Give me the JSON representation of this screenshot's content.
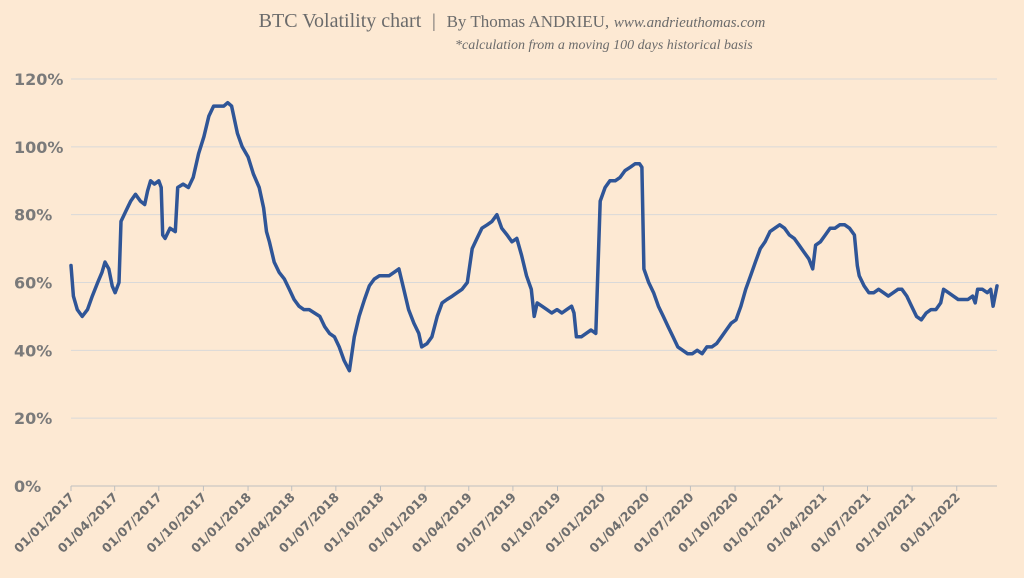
{
  "title": {
    "main": "BTC Volatility chart",
    "separator": "|",
    "author": "By Thomas ANDRIEU,",
    "site": "www.andrieuthomas.com"
  },
  "subtitle": "*calculation from a moving 100 days historical basis",
  "colors": {
    "background": "#fde9d3",
    "line": "#2f5597",
    "grid": "#d9d9d9"
  },
  "chart_data": {
    "type": "line",
    "title": "BTC Volatility chart",
    "xlabel": "",
    "ylabel": "",
    "ylim": [
      0,
      120
    ],
    "grid": true,
    "legend": "none",
    "y_tick_labels": [
      "0%",
      "20%",
      "40%",
      "60%",
      "80%",
      "100%",
      "120%"
    ],
    "x_tick_labels": [
      "01/01/2017",
      "01/04/2017",
      "01/07/2017",
      "01/10/2017",
      "01/01/2018",
      "01/04/2018",
      "01/07/2018",
      "01/10/2018",
      "01/01/2019",
      "01/04/2019",
      "01/07/2019",
      "01/10/2019",
      "01/01/2020",
      "01/04/2020",
      "01/07/2020",
      "01/10/2020",
      "01/01/2021",
      "01/04/2021",
      "01/07/2021",
      "01/10/2021",
      "01/01/2022"
    ],
    "x_range": [
      "2017-01-01",
      "2022-03-25"
    ],
    "series": [
      {
        "points": [
          [
            "2017-01-01",
            65
          ],
          [
            "2017-01-06",
            56
          ],
          [
            "2017-01-14",
            52
          ],
          [
            "2017-01-24",
            50
          ],
          [
            "2017-02-04",
            52
          ],
          [
            "2017-02-14",
            56
          ],
          [
            "2017-02-25",
            60
          ],
          [
            "2017-03-06",
            63
          ],
          [
            "2017-03-12",
            66
          ],
          [
            "2017-03-20",
            64
          ],
          [
            "2017-03-27",
            59
          ],
          [
            "2017-04-02",
            57
          ],
          [
            "2017-04-10",
            60
          ],
          [
            "2017-04-14",
            78
          ],
          [
            "2017-04-24",
            81
          ],
          [
            "2017-05-04",
            84
          ],
          [
            "2017-05-14",
            86
          ],
          [
            "2017-05-24",
            84
          ],
          [
            "2017-06-02",
            83
          ],
          [
            "2017-06-08",
            87
          ],
          [
            "2017-06-14",
            90
          ],
          [
            "2017-06-22",
            89
          ],
          [
            "2017-07-01",
            90
          ],
          [
            "2017-07-06",
            88
          ],
          [
            "2017-07-09",
            74
          ],
          [
            "2017-07-14",
            73
          ],
          [
            "2017-07-24",
            76
          ],
          [
            "2017-08-04",
            75
          ],
          [
            "2017-08-09",
            88
          ],
          [
            "2017-08-20",
            89
          ],
          [
            "2017-08-31",
            88
          ],
          [
            "2017-09-10",
            91
          ],
          [
            "2017-09-21",
            98
          ],
          [
            "2017-10-02",
            103
          ],
          [
            "2017-10-12",
            109
          ],
          [
            "2017-10-22",
            112
          ],
          [
            "2017-11-01",
            112
          ],
          [
            "2017-11-12",
            112
          ],
          [
            "2017-11-20",
            113
          ],
          [
            "2017-11-28",
            112
          ],
          [
            "2017-12-10",
            104
          ],
          [
            "2017-12-20",
            100
          ],
          [
            "2018-01-01",
            97
          ],
          [
            "2018-01-12",
            92
          ],
          [
            "2018-01-24",
            88
          ],
          [
            "2018-02-02",
            82
          ],
          [
            "2018-02-08",
            75
          ],
          [
            "2018-02-14",
            72
          ],
          [
            "2018-02-24",
            66
          ],
          [
            "2018-03-06",
            63
          ],
          [
            "2018-03-17",
            61
          ],
          [
            "2018-03-27",
            58
          ],
          [
            "2018-04-06",
            55
          ],
          [
            "2018-04-16",
            53
          ],
          [
            "2018-04-26",
            52
          ],
          [
            "2018-05-07",
            52
          ],
          [
            "2018-05-18",
            51
          ],
          [
            "2018-05-29",
            50
          ],
          [
            "2018-06-08",
            47
          ],
          [
            "2018-06-18",
            45
          ],
          [
            "2018-06-28",
            44
          ],
          [
            "2018-07-08",
            41
          ],
          [
            "2018-07-18",
            37
          ],
          [
            "2018-07-29",
            34
          ],
          [
            "2018-08-08",
            44
          ],
          [
            "2018-08-18",
            50
          ],
          [
            "2018-08-29",
            55
          ],
          [
            "2018-09-08",
            59
          ],
          [
            "2018-09-18",
            61
          ],
          [
            "2018-09-29",
            62
          ],
          [
            "2018-10-09",
            62
          ],
          [
            "2018-10-19",
            62
          ],
          [
            "2018-10-29",
            63
          ],
          [
            "2018-11-08",
            64
          ],
          [
            "2018-11-18",
            58
          ],
          [
            "2018-11-28",
            52
          ],
          [
            "2018-12-09",
            48
          ],
          [
            "2018-12-19",
            45
          ],
          [
            "2018-12-25",
            41
          ],
          [
            "2019-01-05",
            42
          ],
          [
            "2019-01-15",
            44
          ],
          [
            "2019-01-26",
            50
          ],
          [
            "2019-02-05",
            54
          ],
          [
            "2019-02-15",
            55
          ],
          [
            "2019-02-26",
            56
          ],
          [
            "2019-03-08",
            57
          ],
          [
            "2019-03-18",
            58
          ],
          [
            "2019-03-29",
            60
          ],
          [
            "2019-04-08",
            70
          ],
          [
            "2019-04-18",
            73
          ],
          [
            "2019-04-28",
            76
          ],
          [
            "2019-05-09",
            77
          ],
          [
            "2019-05-19",
            78
          ],
          [
            "2019-05-29",
            80
          ],
          [
            "2019-06-08",
            76
          ],
          [
            "2019-06-19",
            74
          ],
          [
            "2019-06-29",
            72
          ],
          [
            "2019-07-09",
            73
          ],
          [
            "2019-07-19",
            68
          ],
          [
            "2019-07-29",
            62
          ],
          [
            "2019-08-08",
            58
          ],
          [
            "2019-08-14",
            50
          ],
          [
            "2019-08-20",
            54
          ],
          [
            "2019-08-30",
            53
          ],
          [
            "2019-09-09",
            52
          ],
          [
            "2019-09-19",
            51
          ],
          [
            "2019-09-30",
            52
          ],
          [
            "2019-10-10",
            51
          ],
          [
            "2019-10-20",
            52
          ],
          [
            "2019-10-30",
            53
          ],
          [
            "2019-11-04",
            51
          ],
          [
            "2019-11-09",
            44
          ],
          [
            "2019-11-19",
            44
          ],
          [
            "2019-11-29",
            45
          ],
          [
            "2019-12-09",
            46
          ],
          [
            "2019-12-19",
            45
          ],
          [
            "2019-12-28",
            84
          ],
          [
            "2020-01-07",
            88
          ],
          [
            "2020-01-17",
            90
          ],
          [
            "2020-01-28",
            90
          ],
          [
            "2020-02-07",
            91
          ],
          [
            "2020-02-17",
            93
          ],
          [
            "2020-02-28",
            94
          ],
          [
            "2020-03-09",
            95
          ],
          [
            "2020-03-18",
            95
          ],
          [
            "2020-03-23",
            94
          ],
          [
            "2020-03-27",
            64
          ],
          [
            "2020-04-06",
            60
          ],
          [
            "2020-04-16",
            57
          ],
          [
            "2020-04-26",
            53
          ],
          [
            "2020-05-06",
            50
          ],
          [
            "2020-05-16",
            47
          ],
          [
            "2020-05-26",
            44
          ],
          [
            "2020-06-05",
            41
          ],
          [
            "2020-06-15",
            40
          ],
          [
            "2020-06-25",
            39
          ],
          [
            "2020-07-05",
            39
          ],
          [
            "2020-07-15",
            40
          ],
          [
            "2020-07-25",
            39
          ],
          [
            "2020-08-04",
            41
          ],
          [
            "2020-08-14",
            41
          ],
          [
            "2020-08-24",
            42
          ],
          [
            "2020-09-03",
            44
          ],
          [
            "2020-09-13",
            46
          ],
          [
            "2020-09-23",
            48
          ],
          [
            "2020-10-03",
            49
          ],
          [
            "2020-10-13",
            53
          ],
          [
            "2020-10-23",
            58
          ],
          [
            "2020-11-02",
            62
          ],
          [
            "2020-11-12",
            66
          ],
          [
            "2020-11-22",
            70
          ],
          [
            "2020-12-02",
            72
          ],
          [
            "2020-12-12",
            75
          ],
          [
            "2020-12-22",
            76
          ],
          [
            "2021-01-01",
            77
          ],
          [
            "2021-01-11",
            76
          ],
          [
            "2021-01-21",
            74
          ],
          [
            "2021-01-31",
            73
          ],
          [
            "2021-02-10",
            71
          ],
          [
            "2021-02-20",
            69
          ],
          [
            "2021-03-02",
            67
          ],
          [
            "2021-03-10",
            64
          ],
          [
            "2021-03-16",
            71
          ],
          [
            "2021-03-26",
            72
          ],
          [
            "2021-04-05",
            74
          ],
          [
            "2021-04-15",
            76
          ],
          [
            "2021-04-25",
            76
          ],
          [
            "2021-05-05",
            77
          ],
          [
            "2021-05-15",
            77
          ],
          [
            "2021-05-25",
            76
          ],
          [
            "2021-06-04",
            74
          ],
          [
            "2021-06-10",
            65
          ],
          [
            "2021-06-14",
            62
          ],
          [
            "2021-06-24",
            59
          ],
          [
            "2021-07-04",
            57
          ],
          [
            "2021-07-14",
            57
          ],
          [
            "2021-07-24",
            58
          ],
          [
            "2021-08-03",
            57
          ],
          [
            "2021-08-13",
            56
          ],
          [
            "2021-08-23",
            57
          ],
          [
            "2021-09-02",
            58
          ],
          [
            "2021-09-10",
            58
          ],
          [
            "2021-09-20",
            56
          ],
          [
            "2021-09-30",
            53
          ],
          [
            "2021-10-10",
            50
          ],
          [
            "2021-10-20",
            49
          ],
          [
            "2021-10-30",
            51
          ],
          [
            "2021-11-09",
            52
          ],
          [
            "2021-11-19",
            52
          ],
          [
            "2021-11-29",
            54
          ],
          [
            "2021-12-05",
            58
          ],
          [
            "2021-12-15",
            57
          ],
          [
            "2021-12-25",
            56
          ],
          [
            "2022-01-04",
            55
          ],
          [
            "2022-01-14",
            55
          ],
          [
            "2022-01-24",
            55
          ],
          [
            "2022-02-03",
            56
          ],
          [
            "2022-02-08",
            54
          ],
          [
            "2022-02-13",
            58
          ],
          [
            "2022-02-23",
            58
          ],
          [
            "2022-03-05",
            57
          ],
          [
            "2022-03-12",
            58
          ],
          [
            "2022-03-17",
            53
          ],
          [
            "2022-03-25",
            59
          ]
        ]
      }
    ]
  }
}
